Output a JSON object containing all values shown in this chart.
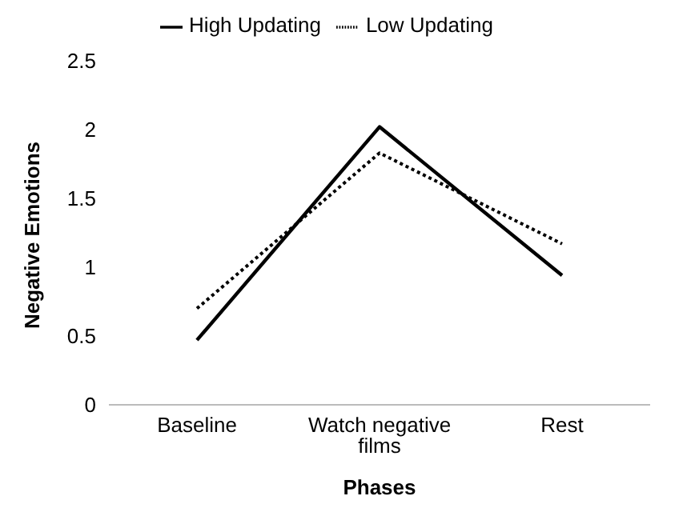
{
  "chart_data": {
    "type": "line",
    "xlabel": "Phases",
    "ylabel": "Negative Emotions",
    "categories": [
      "Baseline",
      "Watch negative films",
      "Rest"
    ],
    "series": [
      {
        "name": "Low Updating",
        "color": "#000000",
        "line_style": "dotted",
        "values": [
          0.7,
          1.83,
          1.17
        ]
      },
      {
        "name": "High Updating",
        "color": "#000000",
        "line_style": "solid",
        "values": [
          0.47,
          2.02,
          0.94
        ]
      }
    ],
    "ylim": [
      0,
      2.5
    ],
    "yticks": [
      0,
      0.5,
      1,
      1.5,
      2,
      2.5
    ],
    "grid": false,
    "legend": "top",
    "marker": "none"
  }
}
